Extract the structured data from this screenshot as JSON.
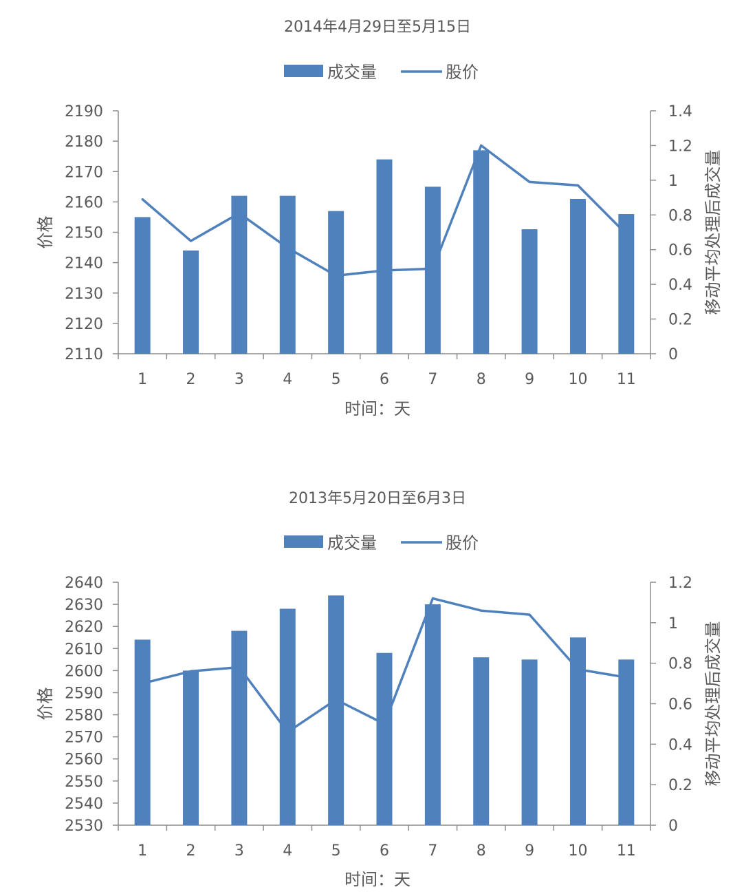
{
  "chart_data": [
    {
      "type": "bar+line",
      "title": "2014年4月29日至5月15日",
      "legend": {
        "position": "top",
        "bar_label": "成交量",
        "line_label": "股价"
      },
      "xlabel": "时间：天",
      "ylabel_left": "价格",
      "ylabel_right": "移动平均处理后成交量",
      "categories": [
        "1",
        "2",
        "3",
        "4",
        "5",
        "6",
        "7",
        "8",
        "9",
        "10",
        "11"
      ],
      "left_axis": {
        "min": 2110,
        "max": 2190,
        "step": 10,
        "ticks": [
          "2110",
          "2120",
          "2130",
          "2140",
          "2150",
          "2160",
          "2170",
          "2180",
          "2190"
        ]
      },
      "right_axis": {
        "min": 0,
        "max": 1.4,
        "step": 0.2,
        "ticks": [
          "0",
          "0.2",
          "0.4",
          "0.6",
          "0.8",
          "1",
          "1.2",
          "1.4"
        ]
      },
      "series": [
        {
          "name": "成交量",
          "kind": "bar",
          "axis": "left",
          "values": [
            2155,
            2144,
            2162,
            2162,
            2157,
            2174,
            2165,
            2177,
            2151,
            2161,
            2156
          ]
        },
        {
          "name": "股价",
          "kind": "line",
          "axis": "right",
          "values": [
            0.89,
            0.65,
            0.81,
            0.61,
            0.45,
            0.48,
            0.49,
            1.2,
            0.99,
            0.97,
            0.69
          ]
        }
      ],
      "colors": {
        "bar": "#4f81bd",
        "line": "#4f81bd"
      },
      "grid": false
    },
    {
      "type": "bar+line",
      "title": "2013年5月20日至6月3日",
      "legend": {
        "position": "top",
        "bar_label": "成交量",
        "line_label": "股价"
      },
      "xlabel": "时间：天",
      "ylabel_left": "价格",
      "ylabel_right": "移动平均处理后成交量",
      "categories": [
        "1",
        "2",
        "3",
        "4",
        "5",
        "6",
        "7",
        "8",
        "9",
        "10",
        "11"
      ],
      "left_axis": {
        "min": 2530,
        "max": 2640,
        "step": 10,
        "ticks": [
          "2530",
          "2540",
          "2550",
          "2560",
          "2570",
          "2580",
          "2590",
          "2600",
          "2610",
          "2620",
          "2630",
          "2640"
        ]
      },
      "right_axis": {
        "min": 0,
        "max": 1.2,
        "step": 0.2,
        "ticks": [
          "0",
          "0.2",
          "0.4",
          "0.6",
          "0.8",
          "1",
          "1.2"
        ]
      },
      "series": [
        {
          "name": "成交量",
          "kind": "bar",
          "axis": "left",
          "values": [
            2614,
            2600,
            2618,
            2628,
            2634,
            2608,
            2630,
            2606,
            2605,
            2615,
            2605
          ]
        },
        {
          "name": "股价",
          "kind": "line",
          "axis": "right",
          "values": [
            0.7,
            0.76,
            0.78,
            0.46,
            0.62,
            0.5,
            1.12,
            1.06,
            1.04,
            0.77,
            0.73
          ]
        }
      ],
      "colors": {
        "bar": "#4f81bd",
        "line": "#4f81bd"
      },
      "grid": false
    }
  ]
}
